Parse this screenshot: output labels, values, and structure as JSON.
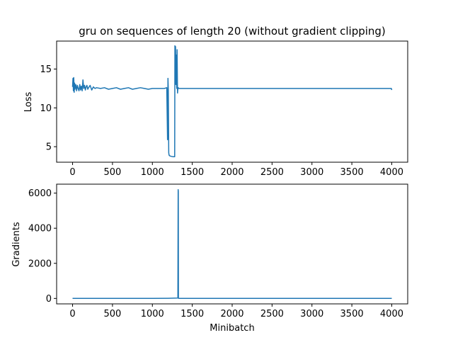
{
  "chart_data": [
    {
      "type": "line",
      "title": "gru on sequences of length 20 (without gradient clipping)",
      "xlabel": "",
      "ylabel": "Loss",
      "xlim": [
        -200,
        4200
      ],
      "ylim": [
        3.0,
        18.6
      ],
      "xticks": [
        0,
        500,
        1000,
        1500,
        2000,
        2500,
        3000,
        3500,
        4000
      ],
      "yticks": [
        5,
        10,
        15
      ],
      "color": "#1f77b4",
      "grid": false,
      "series": [
        {
          "x": [
            0,
            5,
            10,
            15,
            20,
            25,
            30,
            40,
            50,
            60,
            70,
            80,
            90,
            100,
            110,
            120,
            130,
            140,
            150,
            160,
            170,
            180,
            190,
            200,
            220,
            240,
            260,
            280,
            300,
            350,
            400,
            450,
            500,
            550,
            600,
            650,
            700,
            750,
            800,
            850,
            900,
            950,
            1000,
            1050,
            1100,
            1150,
            1180,
            1190,
            1195,
            1200,
            1205,
            1210,
            1220,
            1240,
            1260,
            1280,
            1282,
            1285,
            1290,
            1295,
            1300,
            1305,
            1310,
            1315,
            1320,
            1325,
            1330,
            1335,
            1340,
            1400,
            1500,
            1600,
            1700,
            1800,
            1900,
            2000,
            2100,
            2200,
            2300,
            2400,
            2500,
            2600,
            2700,
            2800,
            2900,
            3000,
            3100,
            3200,
            3300,
            3400,
            3500,
            3600,
            3700,
            3800,
            3900,
            3995,
            4000
          ],
          "y": [
            12.7,
            13.8,
            12.2,
            13.9,
            12.0,
            13.2,
            12.4,
            13.0,
            12.2,
            12.9,
            12.5,
            12.2,
            13.0,
            12.3,
            12.8,
            12.2,
            13.6,
            12.5,
            12.9,
            12.3,
            12.7,
            12.9,
            12.4,
            12.6,
            12.9,
            12.3,
            12.7,
            12.5,
            12.6,
            12.5,
            12.6,
            12.4,
            12.5,
            12.6,
            12.4,
            12.5,
            12.6,
            12.4,
            12.5,
            12.6,
            12.5,
            12.4,
            12.5,
            12.5,
            12.5,
            12.5,
            12.6,
            5.9,
            13.8,
            12.3,
            4.2,
            3.9,
            3.8,
            3.75,
            3.7,
            3.7,
            18.0,
            14.0,
            17.9,
            13.0,
            16.8,
            12.5,
            17.5,
            11.9,
            12.5,
            12.6,
            12.5,
            12.5,
            12.5,
            12.5,
            12.5,
            12.5,
            12.5,
            12.5,
            12.5,
            12.5,
            12.5,
            12.5,
            12.5,
            12.5,
            12.5,
            12.5,
            12.5,
            12.5,
            12.5,
            12.5,
            12.5,
            12.5,
            12.5,
            12.5,
            12.5,
            12.5,
            12.5,
            12.5,
            12.5,
            12.5,
            12.3
          ]
        }
      ]
    },
    {
      "type": "line",
      "title": "",
      "xlabel": "Minibatch",
      "ylabel": "Gradients",
      "xlim": [
        -200,
        4200
      ],
      "ylim": [
        -310,
        6510
      ],
      "xticks": [
        0,
        500,
        1000,
        1500,
        2000,
        2500,
        3000,
        3500,
        4000
      ],
      "yticks": [
        0,
        2000,
        4000,
        6000
      ],
      "color": "#1f77b4",
      "grid": false,
      "series": [
        {
          "x": [
            0,
            1000,
            1200,
            1320,
            1323,
            1325,
            1327,
            1330,
            1500,
            2500,
            4000
          ],
          "y": [
            0,
            0,
            10,
            20,
            6200,
            6100,
            30,
            0,
            0,
            0,
            0
          ]
        }
      ]
    }
  ]
}
